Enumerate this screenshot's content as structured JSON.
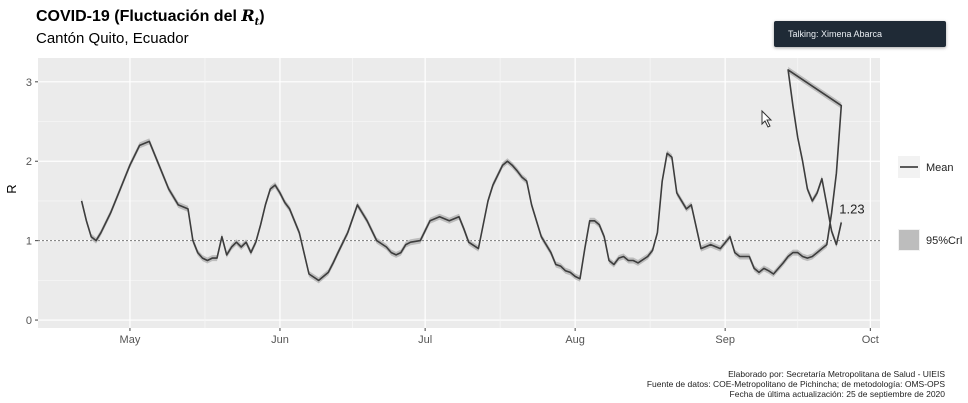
{
  "header": {
    "title_text": "COVID-19 (Fluctuación del ",
    "title_symbol": "R",
    "title_sub": "t",
    "title_close": ")",
    "subtitle": "Cantón Quito, Ecuador"
  },
  "overlay": {
    "talking_label": "Talking: Ximena Abarca"
  },
  "credits": [
    "Elaborado por: Secretaría Metropolitana de Salud - UIEIS",
    "Fuente de datos: COE-Metropolitano de Pichincha; de metodología: OMS-OPS",
    "Fecha de última actualización: 25 de septiembre de 2020"
  ],
  "chart_data": {
    "type": "line",
    "ylabel": "R",
    "xlabel": "",
    "ylim": [
      -0.1,
      3.3
    ],
    "xlim": [
      "2020-04-12",
      "2020-10-03"
    ],
    "yticks": [
      0,
      1,
      2,
      3
    ],
    "ytick_labels": [
      "0",
      "1",
      "2",
      "3"
    ],
    "xticks": [
      "2020-05-01",
      "2020-06-01",
      "2020-07-01",
      "2020-08-01",
      "2020-09-01",
      "2020-10-01"
    ],
    "xtick_labels": [
      "May",
      "Jun",
      "Jul",
      "Aug",
      "Sep",
      "Oct"
    ],
    "reference_line": 1,
    "grid": true,
    "legend_position": "right",
    "legend": [
      {
        "label": "Mean",
        "kind": "line",
        "color": "#444444"
      },
      {
        "label": "95%CrI",
        "kind": "band",
        "color": "#bdbdbd"
      }
    ],
    "last_value_label": "1.23",
    "colors": {
      "line": "#3d3d3d",
      "band": "#bdbdbd",
      "panel": "#ebebeb"
    },
    "series": [
      {
        "x": [
          "2020-04-21",
          "2020-04-22",
          "2020-04-23",
          "2020-04-24",
          "2020-04-25",
          "2020-04-27",
          "2020-04-29",
          "2020-05-01",
          "2020-05-03",
          "2020-05-05",
          "2020-05-07",
          "2020-05-09",
          "2020-05-11",
          "2020-05-13",
          "2020-05-14",
          "2020-05-15",
          "2020-05-16",
          "2020-05-17",
          "2020-05-18",
          "2020-05-19",
          "2020-05-20",
          "2020-05-21",
          "2020-05-22",
          "2020-05-23",
          "2020-05-24",
          "2020-05-25",
          "2020-05-26",
          "2020-05-27",
          "2020-05-28",
          "2020-05-29",
          "2020-05-30",
          "2020-05-31",
          "2020-06-01",
          "2020-06-02",
          "2020-06-03",
          "2020-06-05",
          "2020-06-07",
          "2020-06-09",
          "2020-06-11",
          "2020-06-12",
          "2020-06-13",
          "2020-06-15",
          "2020-06-17",
          "2020-06-19",
          "2020-06-21",
          "2020-06-23",
          "2020-06-24",
          "2020-06-25",
          "2020-06-26",
          "2020-06-27",
          "2020-06-28",
          "2020-06-30",
          "2020-07-02",
          "2020-07-04",
          "2020-07-06",
          "2020-07-08",
          "2020-07-09",
          "2020-07-10",
          "2020-07-12",
          "2020-07-14",
          "2020-07-15",
          "2020-07-17",
          "2020-07-18",
          "2020-07-19",
          "2020-07-20",
          "2020-07-21",
          "2020-07-22",
          "2020-07-23",
          "2020-07-25",
          "2020-07-27",
          "2020-07-28",
          "2020-07-29",
          "2020-07-30",
          "2020-07-31",
          "2020-08-01",
          "2020-08-02",
          "2020-08-03",
          "2020-08-04",
          "2020-08-05",
          "2020-08-06",
          "2020-08-07",
          "2020-08-08",
          "2020-08-09",
          "2020-08-10",
          "2020-08-11",
          "2020-08-12",
          "2020-08-13",
          "2020-08-14",
          "2020-08-16",
          "2020-08-17",
          "2020-08-18",
          "2020-08-19",
          "2020-08-20",
          "2020-08-21",
          "2020-08-22",
          "2020-08-24",
          "2020-08-25",
          "2020-08-27",
          "2020-08-29",
          "2020-08-31",
          "2020-09-02",
          "2020-09-03",
          "2020-09-04",
          "2020-09-06",
          "2020-09-07",
          "2020-09-08",
          "2020-09-09",
          "2020-09-10",
          "2020-09-11",
          "2020-09-12",
          "2020-09-13",
          "2020-09-14",
          "2020-09-15",
          "2020-09-16",
          "2020-09-17",
          "2020-09-18",
          "2020-09-19",
          "2020-09-20",
          "2020-09-21",
          "2020-09-22",
          "2020-09-23",
          "2020-09-24",
          "2020-09-25"
        ],
        "y": [
          1.5,
          1.25,
          1.05,
          1.0,
          1.1,
          1.35,
          1.65,
          1.95,
          2.2,
          2.25,
          1.95,
          1.65,
          1.45,
          1.4,
          1.0,
          0.85,
          0.78,
          0.75,
          0.78,
          0.78,
          1.05,
          0.82,
          0.92,
          0.98,
          0.92,
          0.98,
          0.85,
          0.98,
          1.2,
          1.45,
          1.65,
          1.7,
          1.6,
          1.48,
          1.4,
          1.1,
          0.58,
          0.5,
          0.6,
          0.72,
          0.85,
          1.1,
          1.45,
          1.25,
          1.0,
          0.92,
          0.85,
          0.82,
          0.85,
          0.95,
          0.98,
          1.0,
          1.25,
          1.3,
          1.25,
          1.3,
          1.15,
          0.98,
          0.9,
          1.5,
          1.7,
          1.95,
          2.0,
          1.95,
          1.88,
          1.8,
          1.75,
          1.45,
          1.05,
          0.85,
          0.7,
          0.68,
          0.62,
          0.6,
          0.55,
          0.52,
          0.9,
          1.25,
          1.25,
          1.2,
          1.05,
          0.75,
          0.7,
          0.78,
          0.8,
          0.75,
          0.75,
          0.72,
          0.8,
          0.88,
          1.1,
          1.75,
          2.1,
          2.05,
          1.6,
          1.4,
          1.45,
          0.9,
          0.95,
          0.9,
          1.05,
          0.85,
          0.8,
          0.8,
          0.65,
          0.6,
          0.65,
          0.62,
          0.58,
          0.65,
          0.72,
          0.8,
          0.85,
          0.85,
          0.8,
          0.78,
          0.8,
          0.85,
          0.9,
          0.95,
          1.35,
          1.85,
          2.7
        ]
      }
    ],
    "series_tail": {
      "x": [
        "2020-09-14",
        "2020-09-15",
        "2020-09-16",
        "2020-09-17",
        "2020-09-18",
        "2020-09-19",
        "2020-09-20",
        "2020-09-21",
        "2020-09-22",
        "2020-09-23",
        "2020-09-24",
        "2020-09-25"
      ],
      "y": [
        3.15,
        2.7,
        2.3,
        2.0,
        1.65,
        1.5,
        1.6,
        1.78,
        1.45,
        1.12,
        0.95,
        1.23
      ]
    }
  }
}
